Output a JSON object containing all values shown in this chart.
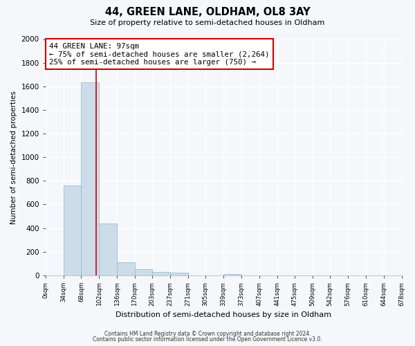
{
  "title": "44, GREEN LANE, OLDHAM, OL8 3AY",
  "subtitle": "Size of property relative to semi-detached houses in Oldham",
  "xlabel": "Distribution of semi-detached houses by size in Oldham",
  "ylabel": "Number of semi-detached properties",
  "bar_edges": [
    0,
    34,
    68,
    102,
    136,
    170,
    203,
    237,
    271,
    305,
    339,
    373,
    407,
    441,
    475,
    509,
    542,
    576,
    610,
    644,
    678
  ],
  "bar_heights": [
    0,
    760,
    1635,
    440,
    110,
    50,
    28,
    20,
    0,
    0,
    10,
    0,
    0,
    0,
    0,
    0,
    0,
    0,
    0,
    0
  ],
  "bar_color": "#ccdce8",
  "bar_edgecolor": "#9dbdd4",
  "property_value": 97,
  "red_line_color": "#cc0000",
  "annotation_title": "44 GREEN LANE: 97sqm",
  "annotation_line1": "← 75% of semi-detached houses are smaller (2,264)",
  "annotation_line2": "25% of semi-detached houses are larger (750) →",
  "annotation_box_facecolor": "#ffffff",
  "annotation_box_edgecolor": "#cc0000",
  "ylim": [
    0,
    2000
  ],
  "yticks": [
    0,
    200,
    400,
    600,
    800,
    1000,
    1200,
    1400,
    1600,
    1800,
    2000
  ],
  "tick_labels": [
    "0sqm",
    "34sqm",
    "68sqm",
    "102sqm",
    "136sqm",
    "170sqm",
    "203sqm",
    "237sqm",
    "271sqm",
    "305sqm",
    "339sqm",
    "373sqm",
    "407sqm",
    "441sqm",
    "475sqm",
    "509sqm",
    "542sqm",
    "576sqm",
    "610sqm",
    "644sqm",
    "678sqm"
  ],
  "footer1": "Contains HM Land Registry data © Crown copyright and database right 2024.",
  "footer2": "Contains public sector information licensed under the Open Government Licence v3.0.",
  "background_color": "#f5f7fa",
  "plot_background": "#f5f7fa",
  "grid_color": "#ffffff",
  "figsize": [
    6.0,
    5.0
  ],
  "dpi": 100
}
